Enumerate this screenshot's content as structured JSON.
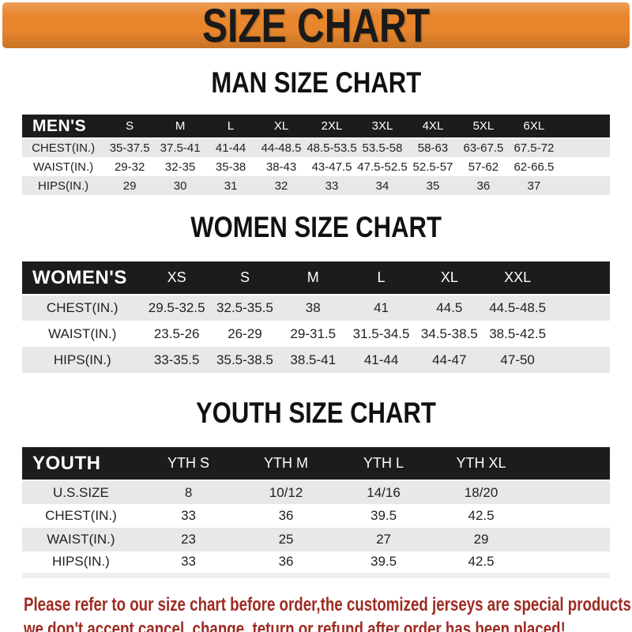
{
  "banner": {
    "title": "SIZE CHART"
  },
  "colors": {
    "banner_bg": "#E8862D",
    "banner_text": "#1A1A1A",
    "title_text": "#111111",
    "table_header_bg": "#1C1C1C",
    "table_header_text": "#FFFFFF",
    "row_alt_bg": "#E8E8E8",
    "body_text": "#222222",
    "footer_text": "#9E2B23"
  },
  "chart_data": [
    {
      "type": "table",
      "title": "MAN SIZE CHART",
      "corner_label": "MEN'S",
      "columns": [
        "S",
        "M",
        "L",
        "XL",
        "2XL",
        "3XL",
        "4XL",
        "5XL",
        "6XL"
      ],
      "rows": [
        {
          "label": "CHEST(IN.)",
          "values": [
            "35-37.5",
            "37.5-41",
            "41-44",
            "44-48.5",
            "48.5-53.5",
            "53.5-58",
            "58-63",
            "63-67.5",
            "67.5-72"
          ]
        },
        {
          "label": "WAIST(IN.)",
          "values": [
            "29-32",
            "32-35",
            "35-38",
            "38-43",
            "43-47.5",
            "47.5-52.5",
            "52.5-57",
            "57-62",
            "62-66.5"
          ]
        },
        {
          "label": "HIPS(IN.)",
          "values": [
            "29",
            "30",
            "31",
            "32",
            "33",
            "34",
            "35",
            "36",
            "37"
          ]
        }
      ]
    },
    {
      "type": "table",
      "title": "WOMEN SIZE CHART",
      "corner_label": "WOMEN'S",
      "columns": [
        "XS",
        "S",
        "M",
        "L",
        "XL",
        "XXL"
      ],
      "rows": [
        {
          "label": "CHEST(IN.)",
          "values": [
            "29.5-32.5",
            "32.5-35.5",
            "38",
            "41",
            "44.5",
            "44.5-48.5"
          ]
        },
        {
          "label": "WAIST(IN.)",
          "values": [
            "23.5-26",
            "26-29",
            "29-31.5",
            "31.5-34.5",
            "34.5-38.5",
            "38.5-42.5"
          ]
        },
        {
          "label": "HIPS(IN.)",
          "values": [
            "33-35.5",
            "35.5-38.5",
            "38.5-41",
            "41-44",
            "44-47",
            "47-50"
          ]
        }
      ]
    },
    {
      "type": "table",
      "title": "YOUTH SIZE CHART",
      "corner_label": "YOUTH",
      "columns": [
        "YTH S",
        "YTH M",
        "YTH L",
        "YTH XL"
      ],
      "rows": [
        {
          "label": "U.S.SIZE",
          "values": [
            "8",
            "10/12",
            "14/16",
            "18/20"
          ]
        },
        {
          "label": "CHEST(IN.)",
          "values": [
            "33",
            "36",
            "39.5",
            "42.5"
          ]
        },
        {
          "label": "WAIST(IN.)",
          "values": [
            "23",
            "25",
            "27",
            "29"
          ]
        },
        {
          "label": "HIPS(IN.)",
          "values": [
            "33",
            "36",
            "39.5",
            "42.5"
          ]
        }
      ]
    }
  ],
  "footer": {
    "line1": "Please refer to our size chart before order,the customized jerseys are special products,",
    "line2": "we don't accept cancel, change, teturn or refund after order has been placed!"
  }
}
